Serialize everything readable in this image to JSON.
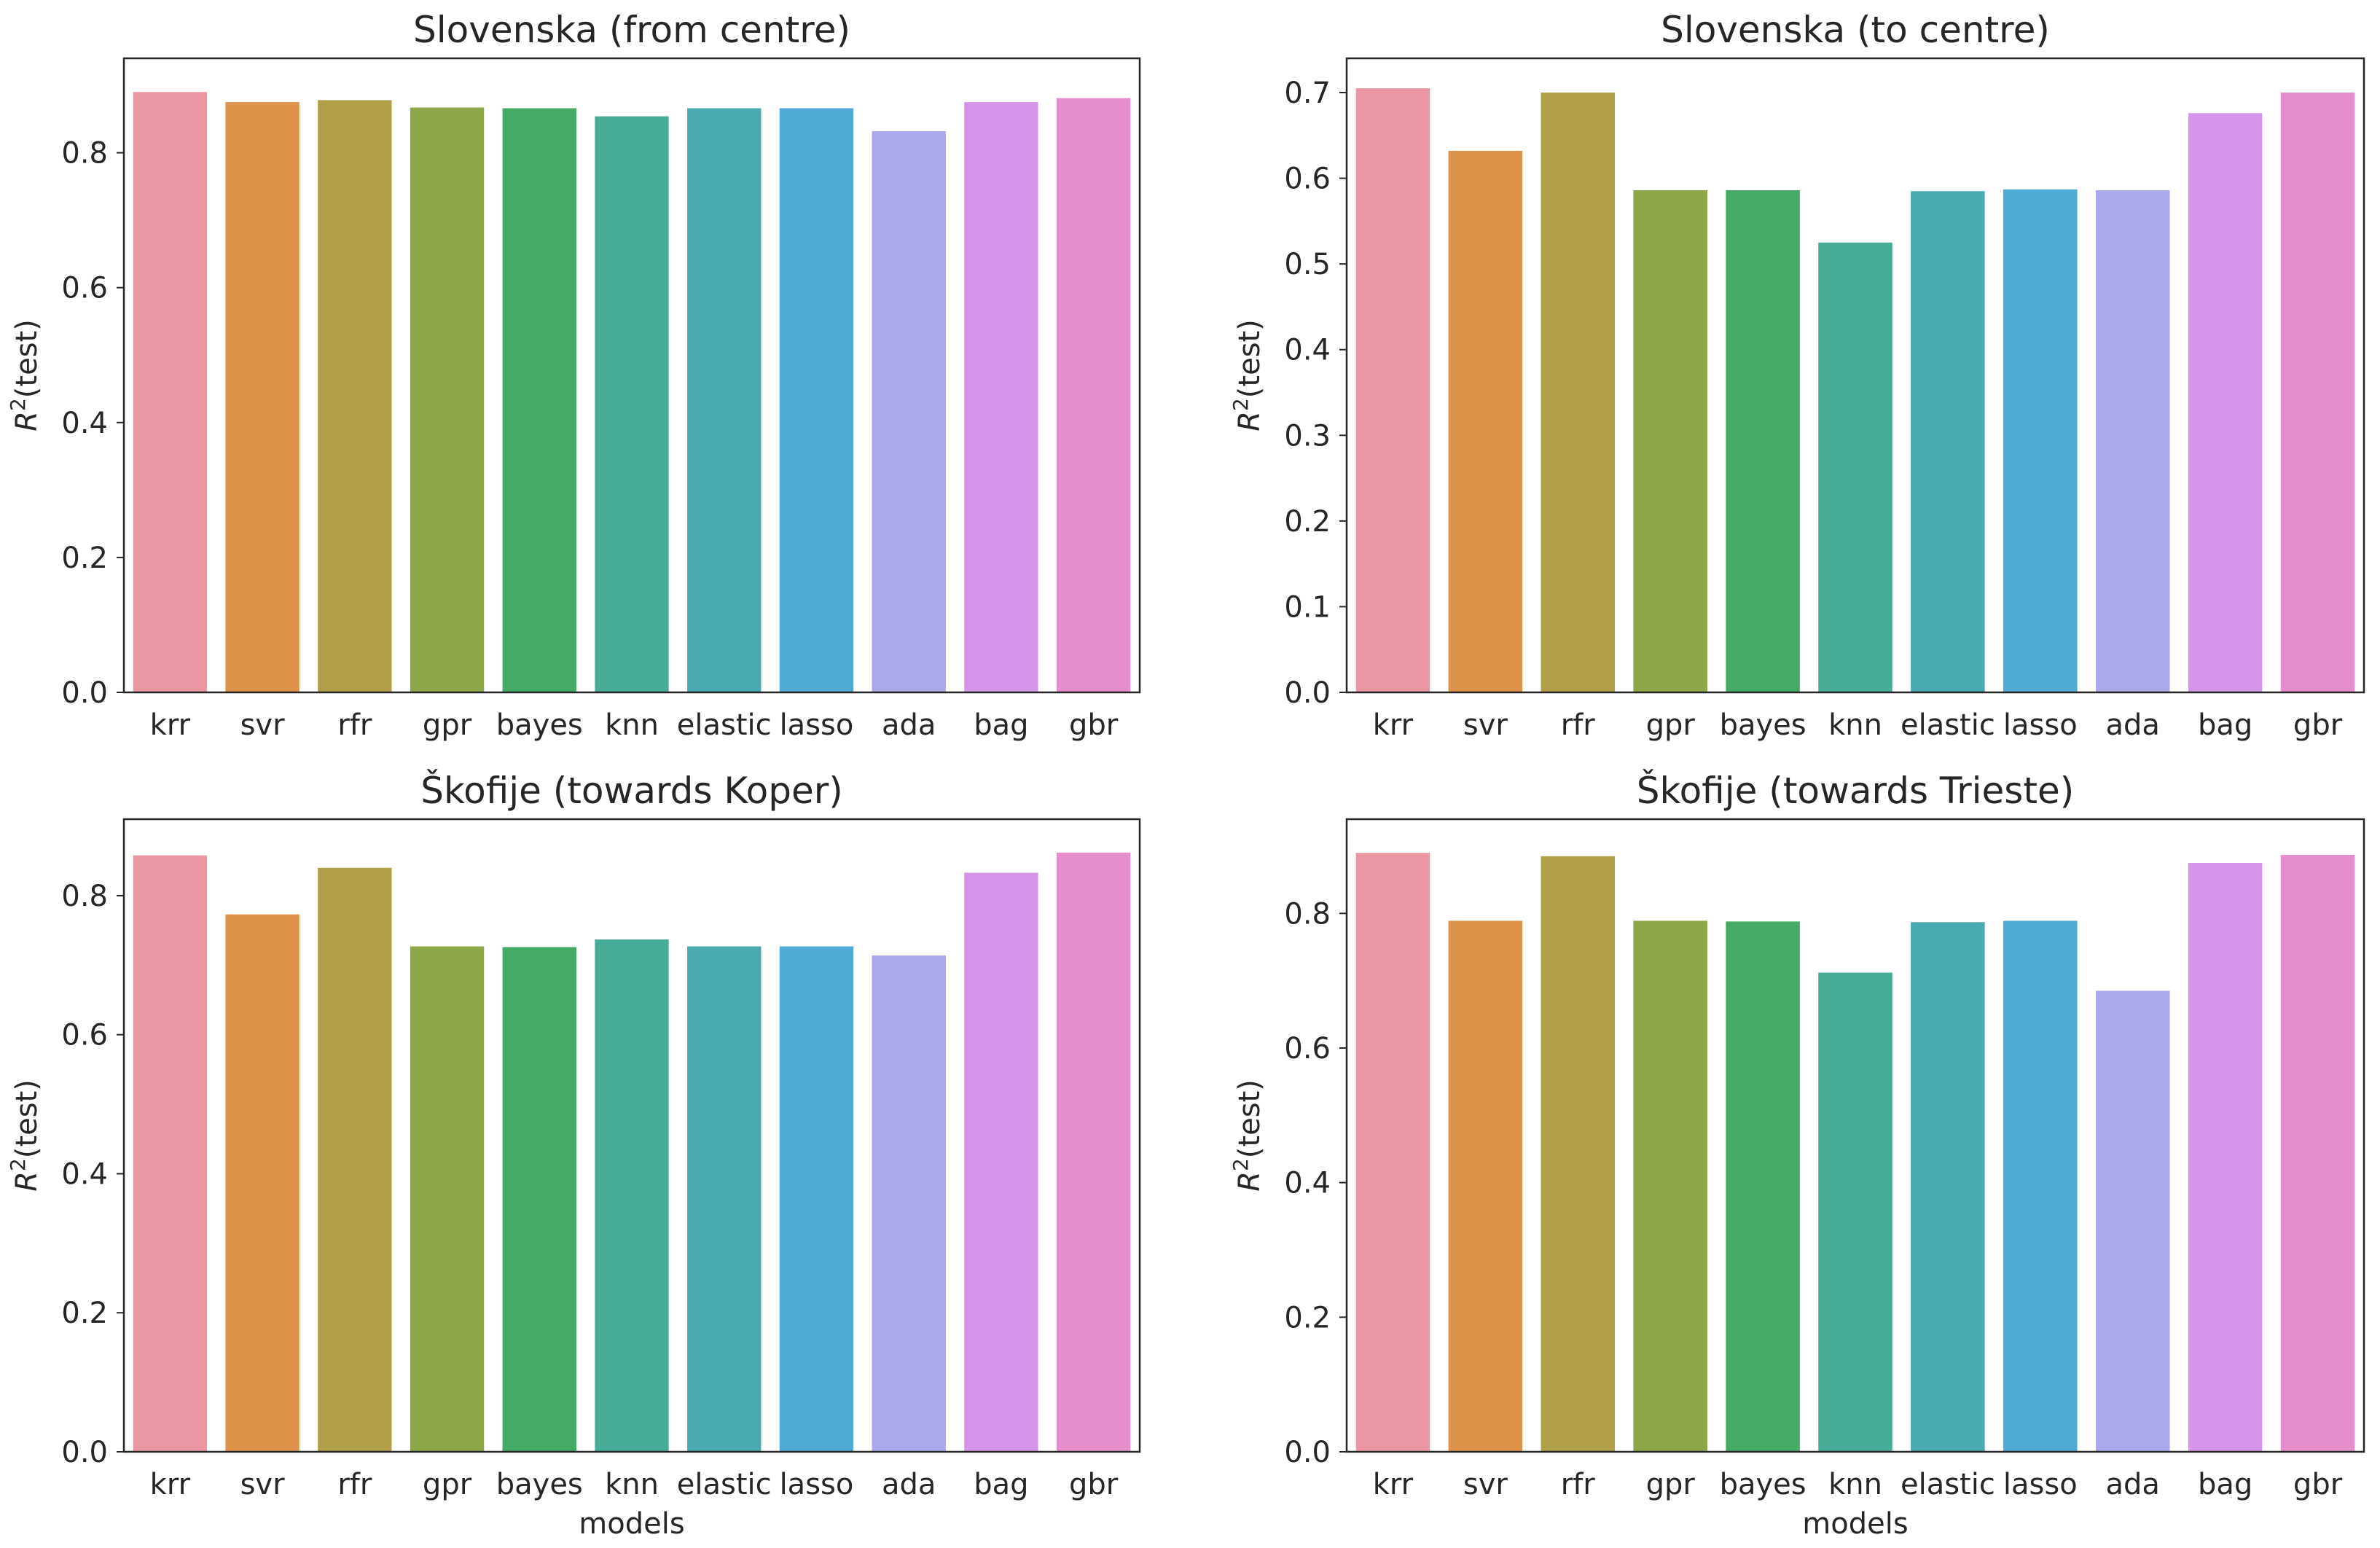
{
  "figure": {
    "bar_colors": [
      "#ea96a3",
      "#dd924a",
      "#b09f48",
      "#8da647",
      "#45ab64",
      "#48ad98",
      "#4aaab2",
      "#51aad6",
      "#aba9ec",
      "#d595e8",
      "#e68ecc"
    ]
  },
  "chart_data": [
    {
      "type": "bar",
      "title": "Slovenska (from centre)",
      "xlabel": "",
      "ylabel_main": "R",
      "ylabel_sup": "2",
      "ylabel_rest": "(test)",
      "categories": [
        "krr",
        "svr",
        "rfr",
        "gpr",
        "bayes",
        "knn",
        "elastic",
        "lasso",
        "ada",
        "bag",
        "gbr"
      ],
      "values": [
        0.89,
        0.875,
        0.878,
        0.867,
        0.866,
        0.854,
        0.866,
        0.866,
        0.832,
        0.875,
        0.881
      ],
      "ylim": [
        0,
        0.94
      ],
      "yticks": [
        0.0,
        0.2,
        0.4,
        0.6,
        0.8
      ],
      "ytick_labels": [
        "0.0",
        "0.2",
        "0.4",
        "0.6",
        "0.8"
      ]
    },
    {
      "type": "bar",
      "title": "Slovenska (to centre)",
      "xlabel": "",
      "ylabel_main": "R",
      "ylabel_sup": "2",
      "ylabel_rest": "(test)",
      "categories": [
        "krr",
        "svr",
        "rfr",
        "gpr",
        "bayes",
        "knn",
        "elastic",
        "lasso",
        "ada",
        "bag",
        "gbr"
      ],
      "values": [
        0.705,
        0.632,
        0.7,
        0.586,
        0.586,
        0.525,
        0.585,
        0.587,
        0.586,
        0.676,
        0.7
      ],
      "ylim": [
        0,
        0.74
      ],
      "yticks": [
        0.0,
        0.1,
        0.2,
        0.3,
        0.4,
        0.5,
        0.6,
        0.7
      ],
      "ytick_labels": [
        "0.0",
        "0.1",
        "0.2",
        "0.3",
        "0.4",
        "0.5",
        "0.6",
        "0.7"
      ]
    },
    {
      "type": "bar",
      "title": "Škofije (towards Koper)",
      "xlabel": "models",
      "ylabel_main": "R",
      "ylabel_sup": "2",
      "ylabel_rest": "(test)",
      "categories": [
        "krr",
        "svr",
        "rfr",
        "gpr",
        "bayes",
        "knn",
        "elastic",
        "lasso",
        "ada",
        "bag",
        "gbr"
      ],
      "values": [
        0.858,
        0.773,
        0.84,
        0.727,
        0.726,
        0.737,
        0.727,
        0.727,
        0.714,
        0.833,
        0.862
      ],
      "ylim": [
        0,
        0.91
      ],
      "yticks": [
        0.0,
        0.2,
        0.4,
        0.6,
        0.8
      ],
      "ytick_labels": [
        "0.0",
        "0.2",
        "0.4",
        "0.6",
        "0.8"
      ]
    },
    {
      "type": "bar",
      "title": "Škofije (towards Trieste)",
      "xlabel": "models",
      "ylabel_main": "R",
      "ylabel_sup": "2",
      "ylabel_rest": "(test)",
      "categories": [
        "krr",
        "svr",
        "rfr",
        "gpr",
        "bayes",
        "knn",
        "elastic",
        "lasso",
        "ada",
        "bag",
        "gbr"
      ],
      "values": [
        0.89,
        0.789,
        0.885,
        0.789,
        0.788,
        0.712,
        0.787,
        0.789,
        0.685,
        0.875,
        0.887
      ],
      "ylim": [
        0,
        0.94
      ],
      "yticks": [
        0.0,
        0.2,
        0.4,
        0.6,
        0.8
      ],
      "ytick_labels": [
        "0.0",
        "0.2",
        "0.4",
        "0.6",
        "0.8"
      ]
    }
  ]
}
